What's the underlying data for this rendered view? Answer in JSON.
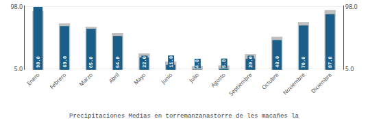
{
  "chart_data": {
    "type": "bar",
    "title": "Precipitaciones Medias en torremanzanastorre de les macañes la",
    "categories": [
      "Enero",
      "Febrero",
      "Marzo",
      "Abril",
      "Mayo",
      "Junio",
      "Julio",
      "Agosto",
      "Septiembre",
      "Octubre",
      "Noviembre",
      "Diciembre"
    ],
    "series": [
      {
        "color": "#c0bfbf",
        "values": [
          92.0,
          73.0,
          68.0,
          59.0,
          28.0,
          16.0,
          9.0,
          10.0,
          27.0,
          53.0,
          75.0,
          93.0
        ]
      },
      {
        "color": "#1a5f8a",
        "values": [
          98.0,
          69.0,
          65.0,
          54.0,
          22.0,
          11.0,
          4.0,
          5.0,
          20.0,
          48.0,
          70.0,
          87.0
        ],
        "value_labels": [
          "98.0",
          "69.0",
          "65.0",
          "54.0",
          "22.0",
          "11.0",
          "4.0",
          "5.0",
          "20.0",
          "48.0",
          "70.0",
          "87.0"
        ]
      }
    ],
    "data_labels": true,
    "ylim": [
      3.5,
      100
    ],
    "yticks": [
      {
        "value": 5,
        "label": "5.0"
      },
      {
        "value": 98,
        "label": "98.0"
      }
    ],
    "y2lim": [
      3.5,
      100
    ],
    "y2ticks": [
      {
        "value": 5,
        "label": "5.0"
      },
      {
        "value": 98,
        "label": "98.0"
      }
    ],
    "grid": true
  }
}
